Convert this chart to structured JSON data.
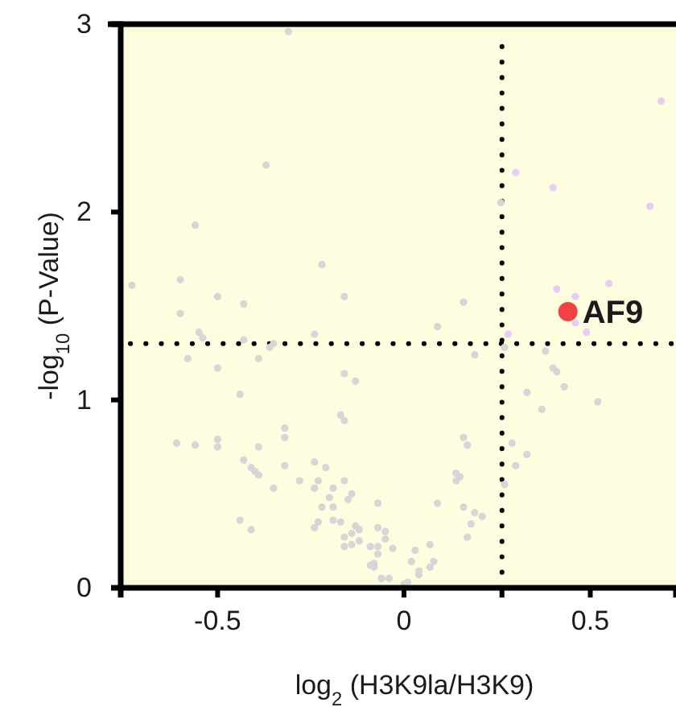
{
  "chart_data": {
    "type": "scatter",
    "xlabel": "log$_{2}$ (H3K9la/H3K9)",
    "ylabel": "-log$_{10}$ (P-Value)",
    "xlim": [
      -0.76,
      0.73
    ],
    "ylim": [
      0,
      3
    ],
    "xticks": [
      -0.5,
      0,
      {
        "value": 0.263,
        "label": null
      },
      0.5
    ],
    "yticks": [
      0,
      1,
      2,
      3
    ],
    "marker": "circle",
    "grid": false,
    "series": [
      {
        "color": "#d6d6d6",
        "x": [
          -0.31,
          -0.37,
          -0.56,
          -0.22,
          -0.73,
          -0.6,
          -0.5,
          -0.43,
          -0.16,
          -0.6,
          -0.55,
          -0.54,
          -0.43,
          -0.36,
          -0.35,
          -0.24,
          -0.58,
          -0.39,
          -0.5,
          -0.16,
          -0.13,
          -0.44,
          -0.17,
          -0.16,
          -0.32,
          -0.32,
          -0.61,
          -0.56,
          -0.5,
          -0.5,
          -0.39,
          -0.43,
          -0.41,
          -0.4,
          -0.39,
          -0.32,
          -0.24,
          -0.21,
          -0.35,
          -0.28,
          -0.23,
          -0.24,
          -0.16,
          -0.19,
          -0.2,
          -0.14,
          -0.15,
          -0.22,
          -0.19,
          -0.07,
          -0.44,
          -0.41,
          -0.23,
          -0.24,
          -0.19,
          -0.17,
          -0.13,
          -0.12,
          -0.07,
          -0.14,
          -0.16,
          -0.12,
          -0.14,
          -0.16,
          -0.09,
          -0.07,
          -0.07,
          -0.08,
          -0.08,
          -0.09,
          -0.06,
          -0.05,
          -0.05,
          0.16,
          0.09,
          0.27,
          0.19,
          0.38,
          0.4,
          0.41,
          0.43,
          0.33,
          0.37,
          0.52,
          0.16,
          0.17,
          0.29,
          0.33,
          0.3,
          0.14,
          0.15,
          0.14,
          0.27,
          0.09,
          0.16,
          0.19,
          0.21,
          0.18,
          0.17,
          -0.03,
          0.03,
          0.07,
          0.02,
          0.08,
          0.07,
          0.04,
          0.04,
          -0.06,
          -0.04,
          0,
          0.01,
          0.26
        ],
        "values": [
          2.96,
          2.25,
          1.93,
          1.72,
          1.61,
          1.64,
          1.55,
          1.51,
          1.55,
          1.46,
          1.36,
          1.33,
          1.32,
          1.28,
          1.3,
          1.35,
          1.22,
          1.22,
          1.17,
          1.14,
          1.1,
          1.03,
          0.92,
          0.89,
          0.85,
          0.8,
          0.77,
          0.76,
          0.79,
          0.75,
          0.75,
          0.68,
          0.64,
          0.62,
          0.6,
          0.65,
          0.67,
          0.64,
          0.53,
          0.57,
          0.57,
          0.53,
          0.57,
          0.53,
          0.48,
          0.5,
          0.47,
          0.43,
          0.43,
          0.45,
          0.36,
          0.31,
          0.35,
          0.32,
          0.36,
          0.35,
          0.33,
          0.31,
          0.32,
          0.29,
          0.27,
          0.25,
          0.23,
          0.22,
          0.22,
          0.22,
          0.18,
          0.13,
          0.11,
          0.12,
          0.05,
          0.3,
          0.26,
          1.52,
          1.39,
          1.28,
          1.24,
          1.26,
          1.17,
          1.15,
          1.07,
          1.04,
          0.95,
          0.99,
          0.8,
          0.76,
          0.77,
          0.71,
          0.65,
          0.61,
          0.59,
          0.57,
          0.55,
          0.45,
          0.43,
          0.4,
          0.38,
          0.34,
          0.27,
          0.21,
          0.2,
          0.23,
          0.14,
          0.14,
          0.11,
          0.09,
          0.07,
          0.05,
          0.05,
          0.02,
          0.03,
          2.05
        ]
      },
      {
        "color": "#e8cdf2",
        "x": [
          0.69,
          0.3,
          0.4,
          0.66,
          0.41,
          0.55,
          0.46,
          0.46,
          0.49,
          0.28
        ],
        "values": [
          2.59,
          2.21,
          2.13,
          2.03,
          1.59,
          1.62,
          1.55,
          1.41,
          1.36,
          1.35
        ]
      },
      {
        "color": "#f24141",
        "x": [
          0.44
        ],
        "values": [
          1.47
        ]
      }
    ],
    "ref_lines": [
      {
        "axis": "x",
        "value": 0.263,
        "color": "#000000",
        "line_style": "dotted"
      },
      {
        "axis": "y",
        "value": 1.3,
        "color": "#000000",
        "line_style": "dotted"
      }
    ],
    "annotations": [
      {
        "text": "AF9",
        "x": 0.44,
        "y": 1.47
      }
    ]
  }
}
